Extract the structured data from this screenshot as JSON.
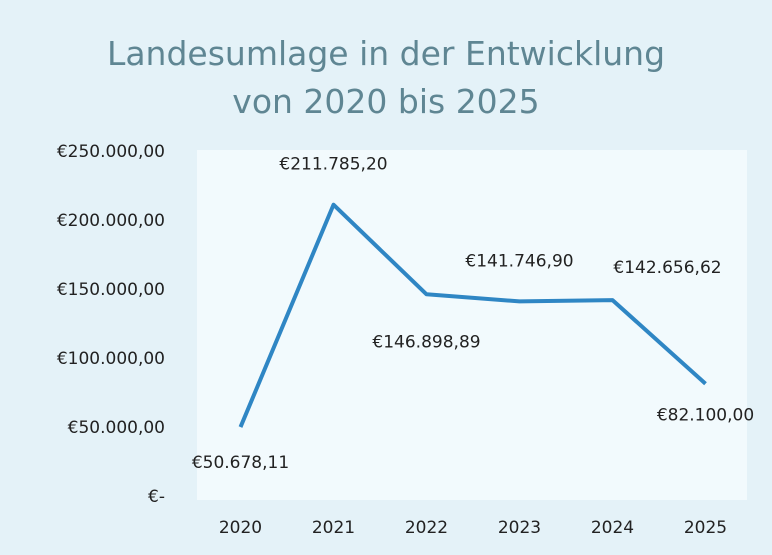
{
  "chart_data": {
    "type": "line",
    "title": "Landesumlage in der Entwicklung von 2020 bis 2025",
    "categories": [
      "2020",
      "2021",
      "2022",
      "2023",
      "2024",
      "2025"
    ],
    "values": [
      50678.11,
      211785.2,
      146898.89,
      141746.9,
      142656.62,
      82100.0
    ],
    "value_labels": [
      "€50.678,11",
      "€211.785,20",
      "€146.898,89",
      "€141.746,90",
      "€142.656,62",
      "€82.100,00"
    ],
    "color": "#2f86c4",
    "ylim": [
      0,
      250000
    ],
    "yticks": [
      {
        "value": 0,
        "label": "€-"
      },
      {
        "value": 50000,
        "label": "€50.000,00"
      },
      {
        "value": 100000,
        "label": "€100.000,00"
      },
      {
        "value": 150000,
        "label": "€150.000,00"
      },
      {
        "value": 200000,
        "label": "€200.000,00"
      },
      {
        "value": 250000,
        "label": "€250.000,00"
      }
    ],
    "grid": false
  }
}
